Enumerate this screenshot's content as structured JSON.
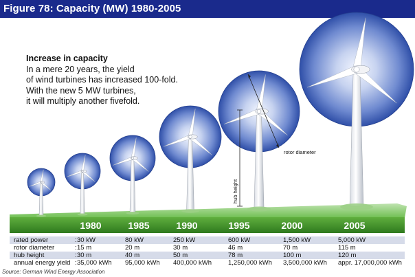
{
  "figure_title": "Figure 78: Capacity (MW) 1980-2005",
  "intro": {
    "heading": "Increase in capacity",
    "lines": [
      "In a mere 20 years, the yield",
      "of wind turbines has increased 100-fold.",
      "With the new 5 MW turbines,",
      "it will multiply another fivefold."
    ]
  },
  "annotations": {
    "rotor_diameter": "rotor diameter",
    "hub_height": "hub height"
  },
  "years": [
    "1980",
    "1985",
    "1990",
    "1995",
    "2000",
    "2005"
  ],
  "rows": [
    {
      "label": "rated power",
      "values": [
        "30 kW",
        "80 kW",
        "250 kW",
        "600 kW",
        "1,500 kW",
        "5,000 kW"
      ]
    },
    {
      "label": "rotor diameter",
      "values": [
        "15 m",
        "20 m",
        "30 m",
        "46 m",
        "70 m",
        "115 m"
      ]
    },
    {
      "label": "hub height",
      "values": [
        "30 m",
        "40 m",
        "50 m",
        "78 m",
        "100 m",
        "120 m"
      ]
    },
    {
      "label": "annual energy yield",
      "values": [
        "35,000 kWh",
        "95,000 kWh",
        "400,000 kWh",
        "1,250,000 kWh",
        "3,500,000 kWh",
        "appr. 17,000,000 kWh"
      ]
    }
  ],
  "source": "Source: German Wind Energy Association",
  "colors": {
    "title_bg": "#1a2a8c",
    "ground": "#3c8b26",
    "row_shade": "#d6dbe9",
    "rotor_disc": "#2f4fa8"
  }
}
